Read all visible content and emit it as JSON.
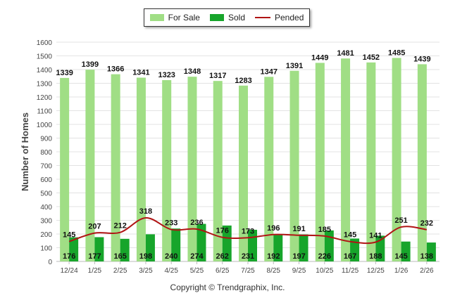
{
  "legend": {
    "for_sale": "For Sale",
    "sold": "Sold",
    "pended": "Pended"
  },
  "copyright": "Copyright © Trendgraphix, Inc.",
  "colors": {
    "for_sale": "#a0de85",
    "sold": "#17a52b",
    "pended": "#b01414",
    "grid": "#e3e3e3",
    "axis_text": "#444444"
  },
  "chart_data": {
    "type": "bar",
    "title": "",
    "xlabel": "",
    "ylabel": "Number of Homes",
    "ylim": [
      0,
      1600
    ],
    "yticks": [
      0,
      100,
      200,
      300,
      400,
      500,
      600,
      700,
      800,
      900,
      1000,
      1100,
      1200,
      1300,
      1400,
      1500,
      1600
    ],
    "grid": true,
    "legend_position": "top-center",
    "categories": [
      "12/24",
      "1/25",
      "2/25",
      "3/25",
      "4/25",
      "5/25",
      "6/25",
      "7/25",
      "8/25",
      "9/25",
      "10/25",
      "11/25",
      "12/25",
      "1/26",
      "2/26"
    ],
    "series": [
      {
        "name": "For Sale",
        "type": "bar",
        "values": [
          1339,
          1399,
          1366,
          1341,
          1323,
          1348,
          1317,
          1283,
          1347,
          1391,
          1449,
          1481,
          1452,
          1485,
          1439
        ]
      },
      {
        "name": "Sold",
        "type": "bar",
        "values": [
          176,
          177,
          165,
          198,
          240,
          274,
          262,
          231,
          192,
          197,
          226,
          167,
          188,
          145,
          138
        ]
      },
      {
        "name": "Pended",
        "type": "line",
        "values": [
          145,
          207,
          212,
          318,
          233,
          236,
          176,
          173,
          196,
          191,
          185,
          145,
          141,
          251,
          232
        ]
      }
    ]
  }
}
